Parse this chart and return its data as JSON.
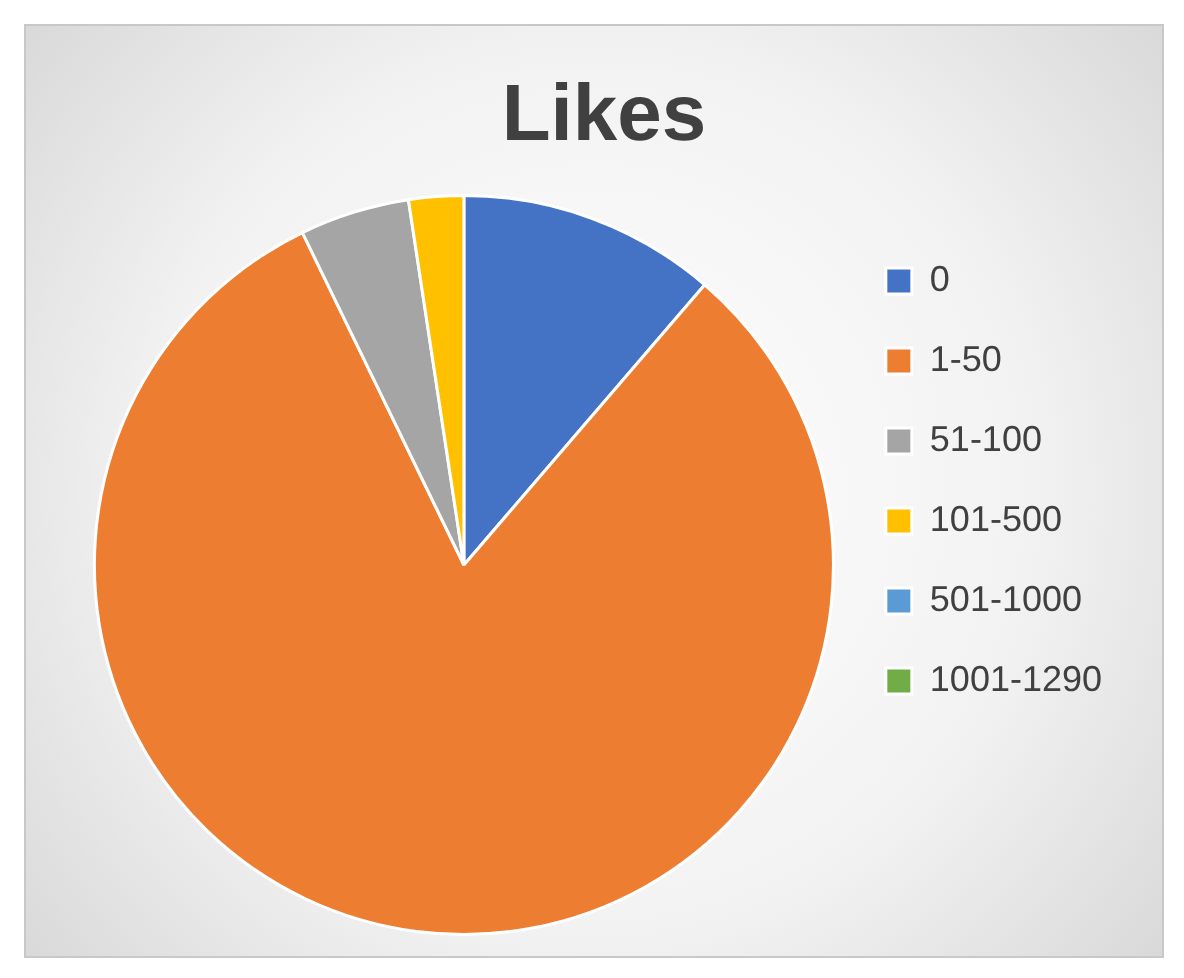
{
  "chart_data": {
    "type": "pie",
    "title": "Likes",
    "categories": [
      "0",
      "1-50",
      "51-100",
      "101-500",
      "501-1000",
      "1001-1290"
    ],
    "values": [
      11.3,
      81.5,
      4.8,
      2.4,
      0,
      0
    ],
    "colors": [
      "#4472c4",
      "#ed7d31",
      "#a5a5a5",
      "#ffc000",
      "#5b9bd5",
      "#70ad47"
    ],
    "legend": "right"
  }
}
